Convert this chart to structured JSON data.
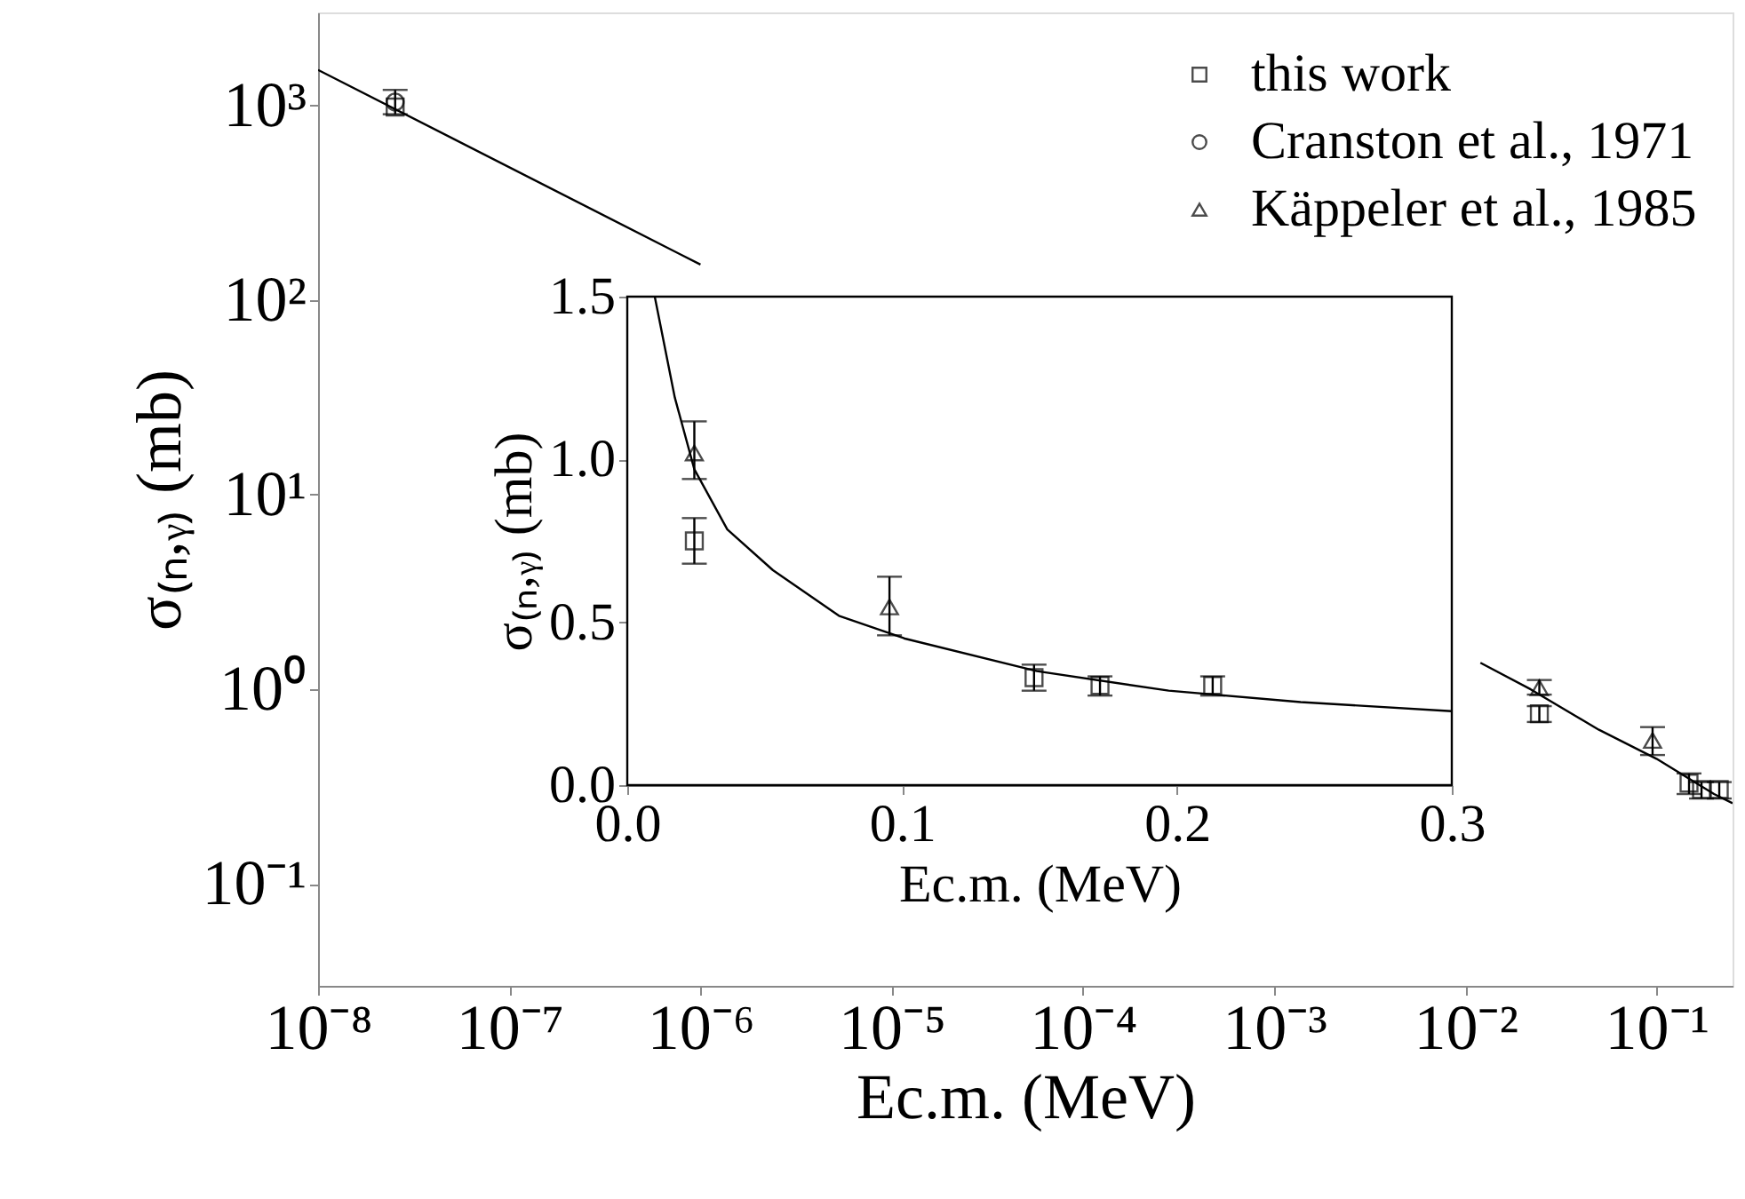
{
  "chart_data": [
    {
      "type": "scatter",
      "log": "xy",
      "xlabel": "Ec.m. (MeV)",
      "ylabel": "σ₍ₙ,ᵧ₎ (mb)",
      "legend": "top right",
      "grid": false,
      "xlim": [
        1e-08,
        0.25
      ],
      "ylim": [
        0.03,
        3000
      ],
      "xticks": [
        {
          "value": 1e-08,
          "label": "10⁻⁸"
        },
        {
          "value": 1e-07,
          "label": "10⁻⁷"
        },
        {
          "value": 1e-06,
          "label": "10⁻⁶"
        },
        {
          "value": 1e-05,
          "label": "10⁻⁵"
        },
        {
          "value": 0.0001,
          "label": "10⁻⁴"
        },
        {
          "value": 0.001,
          "label": "10⁻³"
        },
        {
          "value": 0.01,
          "label": "10⁻²"
        },
        {
          "value": 0.1,
          "label": "10⁻¹"
        }
      ],
      "yticks": [
        {
          "value": 0.1,
          "label": "10⁻¹"
        },
        {
          "value": 1,
          "label": "10⁰"
        },
        {
          "value": 10,
          "label": "10¹"
        },
        {
          "value": 100,
          "label": "10²"
        },
        {
          "value": 1000,
          "label": "10³"
        }
      ],
      "series": [
        {
          "name": "this work",
          "type": "scatter",
          "marker": "square",
          "color": "#000000",
          "x": [
            2.53e-08,
            0.0244,
            0.148,
            0.172,
            0.213
          ],
          "values": [
            980,
            0.75,
            0.33,
            0.306,
            0.306
          ],
          "errors": [
            null,
            [
              0.68,
              0.82
            ],
            [
              0.29,
              0.37
            ],
            [
              0.275,
              0.334
            ],
            [
              0.275,
              0.334
            ]
          ]
        },
        {
          "name": "Cranston et al., 1971",
          "type": "scatter",
          "marker": "circle",
          "color": "#000000",
          "x": [
            2.53e-08
          ],
          "values": [
            1040
          ],
          "errors": [
            [
              900,
              1200
            ]
          ]
        },
        {
          "name": "Käppeler et al., 1985",
          "type": "scatter",
          "marker": "triangle",
          "color": "#000000",
          "x": [
            0.0244,
            0.0954
          ],
          "values": [
            1.02,
            0.547
          ],
          "errors": [
            [
              0.94,
              1.117
            ],
            [
              0.46,
              0.64
            ]
          ]
        },
        {
          "type": "line",
          "marker": "none",
          "line_style": "solid",
          "color": "#000000",
          "x": [
            1e-08,
            1e-06,
            0.0001,
            0.012,
            0.022,
            0.05,
            0.1,
            0.2,
            0.25
          ],
          "values": [
            1520,
            152,
            null,
            1.37,
            1.0,
            0.62,
            0.44,
            0.29,
            0.26
          ]
        }
      ]
    },
    {
      "type": "scatter",
      "xlabel": "Ec.m. (MeV)",
      "ylabel": "σ₍ₙ,ᵧ₎ (mb)",
      "grid": false,
      "xlim": [
        0,
        0.3
      ],
      "ylim": [
        0,
        1.5
      ],
      "xticks": [
        {
          "value": 0,
          "label": "0.0"
        },
        {
          "value": 0.1,
          "label": "0.1"
        },
        {
          "value": 0.2,
          "label": "0.2"
        },
        {
          "value": 0.3,
          "label": "0.3"
        }
      ],
      "yticks": [
        {
          "value": 0,
          "label": "0.0"
        },
        {
          "value": 0.5,
          "label": "0.5"
        },
        {
          "value": 1.0,
          "label": "1.0"
        },
        {
          "value": 1.5,
          "label": "1.5"
        }
      ],
      "series": [
        {
          "type": "scatter",
          "marker": "square",
          "color": "#000000",
          "x": [
            0.0244,
            0.148,
            0.172,
            0.213
          ],
          "values": [
            0.75,
            0.33,
            0.306,
            0.306
          ],
          "errors": [
            [
              0.68,
              0.82
            ],
            [
              0.29,
              0.37
            ],
            [
              0.275,
              0.334
            ],
            [
              0.275,
              0.334
            ]
          ]
        },
        {
          "type": "scatter",
          "marker": "triangle",
          "color": "#000000",
          "x": [
            0.0244,
            0.0954
          ],
          "values": [
            1.02,
            0.547
          ],
          "errors": [
            [
              0.94,
              1.117
            ],
            [
              0.46,
              0.64
            ]
          ]
        },
        {
          "type": "line",
          "marker": "none",
          "line_style": "solid",
          "color": "#000000",
          "x": [
            0.01,
            0.0173,
            0.0244,
            0.0364,
            0.053,
            0.077,
            0.101,
            0.149,
            0.197,
            0.245,
            0.3
          ],
          "values": [
            1.5,
            1.19,
            0.97,
            0.785,
            0.66,
            0.52,
            0.45,
            0.35,
            0.29,
            0.255,
            0.227
          ]
        }
      ]
    }
  ]
}
